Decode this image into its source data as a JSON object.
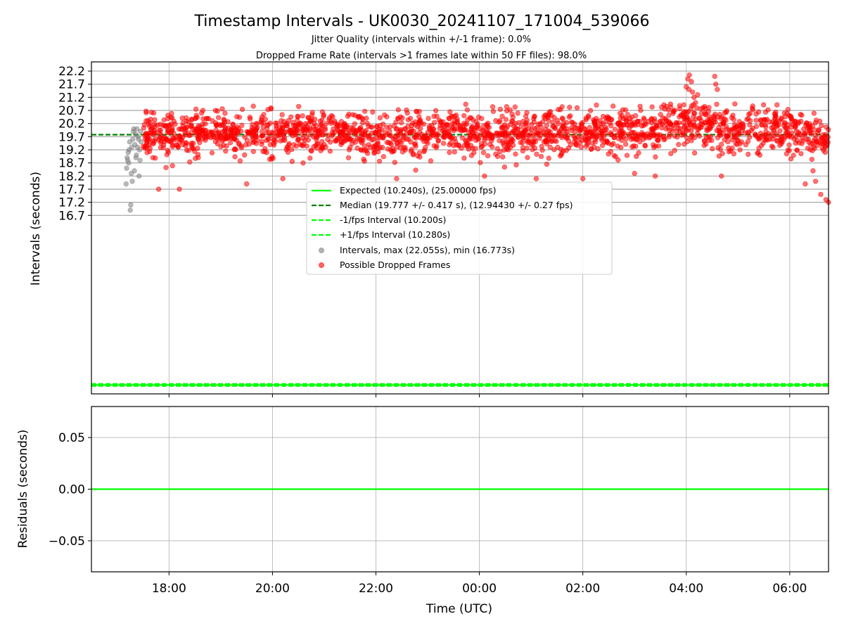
{
  "chart_data": [
    {
      "type": "scatter",
      "title": "Timestamp Intervals - UK0030_20241107_171004_539066",
      "subtitle_lines": [
        "Jitter Quality (intervals within +/-1 frame): 0.0%",
        "Dropped Frame Rate (intervals >1 frames late within 50 FF files): 98.0%"
      ],
      "xlabel": "",
      "ylabel": "Intervals (seconds)",
      "x_range_hours": [
        16.5,
        30.75
      ],
      "ylim": [
        9.9,
        22.55
      ],
      "y_ticks": [
        16.7,
        17.2,
        17.7,
        18.2,
        18.7,
        19.2,
        19.7,
        20.2,
        20.7,
        21.2,
        21.7,
        22.2
      ],
      "y_tick_labels": [
        "16.7",
        "17.2",
        "17.7",
        "18.2",
        "18.7",
        "19.2",
        "19.7",
        "20.2",
        "20.7",
        "21.2",
        "21.7",
        "22.2"
      ],
      "grid": true,
      "legend_placement": "center",
      "legend": [
        {
          "label": "Expected (10.240s), (25.00000 fps)",
          "style": "solid-line",
          "color": "#00ff00"
        },
        {
          "label": "Median (19.777 +/- 0.417 s), (12.94430 +/- 0.27 fps)",
          "style": "dashed-line",
          "color": "#008000"
        },
        {
          "label": "-1/fps Interval (10.200s)",
          "style": "dashed-line",
          "color": "#00ff00"
        },
        {
          "label": "+1/fps Interval (10.280s)",
          "style": "dashed-line",
          "color": "#00ff00"
        },
        {
          "label": "Intervals, max (22.055s), min (16.773s)",
          "style": "marker",
          "color": "#808080"
        },
        {
          "label": "Possible Dropped Frames",
          "style": "marker",
          "color": "#ff0000"
        }
      ],
      "reference_lines": {
        "expected": 10.24,
        "median": 19.777,
        "minus_1fps": 10.2,
        "plus_1fps": 10.28
      },
      "series": [
        {
          "name": "Intervals, max (22.055s), min (16.773s)",
          "color": "#808080",
          "points": [
            [
              17.17,
              17.9
            ],
            [
              17.18,
              18.5
            ],
            [
              17.19,
              18.9
            ],
            [
              17.2,
              18.8
            ],
            [
              17.21,
              19.1
            ],
            [
              17.22,
              18.7
            ],
            [
              17.23,
              19.2
            ],
            [
              17.24,
              19.5
            ],
            [
              17.25,
              16.9
            ],
            [
              17.26,
              17.1
            ],
            [
              17.27,
              18.3
            ],
            [
              17.28,
              19.3
            ],
            [
              17.29,
              18.0
            ],
            [
              17.3,
              19.6
            ],
            [
              17.31,
              19.9
            ],
            [
              17.32,
              20.0
            ],
            [
              17.33,
              18.4
            ],
            [
              17.34,
              19.4
            ],
            [
              17.35,
              19.8
            ],
            [
              17.36,
              18.9
            ],
            [
              17.37,
              19.0
            ],
            [
              17.38,
              20.0
            ],
            [
              17.39,
              19.3
            ],
            [
              17.4,
              19.7
            ],
            [
              17.41,
              19.6
            ],
            [
              17.42,
              18.2
            ],
            [
              17.43,
              19.2
            ],
            [
              17.44,
              18.8
            ],
            [
              17.45,
              19.9
            ],
            [
              17.46,
              19.5
            ]
          ]
        },
        {
          "name": "Possible Dropped Frames",
          "color": "#ff0000",
          "generated": true,
          "x_range_hours": [
            17.5,
            30.75
          ],
          "count": 2000,
          "y_center": 19.78,
          "y_spread": 0.42,
          "outliers": [
            [
              17.8,
              17.7
            ],
            [
              18.2,
              17.7
            ],
            [
              19.5,
              17.9
            ],
            [
              20.2,
              18.1
            ],
            [
              22.4,
              18.1
            ],
            [
              24.1,
              18.2
            ],
            [
              25.1,
              18.1
            ],
            [
              26.0,
              18.1
            ],
            [
              27.0,
              18.3
            ],
            [
              27.4,
              18.2
            ],
            [
              28.0,
              21.6
            ],
            [
              28.03,
              21.9
            ],
            [
              28.06,
              22.05
            ],
            [
              28.1,
              21.8
            ],
            [
              28.12,
              21.4
            ],
            [
              28.15,
              21.2
            ],
            [
              28.18,
              21.0
            ],
            [
              28.2,
              20.8
            ],
            [
              28.22,
              21.3
            ],
            [
              28.05,
              21.5
            ],
            [
              28.55,
              22.0
            ],
            [
              28.57,
              21.7
            ],
            [
              28.6,
              21.5
            ],
            [
              28.68,
              18.2
            ],
            [
              30.3,
              17.9
            ],
            [
              30.5,
              18.0
            ],
            [
              30.6,
              17.5
            ],
            [
              30.7,
              17.3
            ],
            [
              30.75,
              17.2
            ],
            [
              30.45,
              18.4
            ]
          ]
        }
      ]
    },
    {
      "type": "line",
      "xlabel": "Time (UTC)",
      "ylabel": "Residuals (seconds)",
      "x_range_hours": [
        16.5,
        30.75
      ],
      "ylim": [
        -0.08,
        0.08
      ],
      "y_ticks": [
        -0.05,
        0.0,
        0.05
      ],
      "y_tick_labels": [
        "−0.05",
        "0.00",
        "0.05"
      ],
      "x_tick_values": [
        18,
        20,
        22,
        24,
        26,
        28,
        30
      ],
      "x_tick_labels": [
        "18:00",
        "20:00",
        "22:00",
        "00:00",
        "02:00",
        "04:00",
        "06:00"
      ],
      "grid": true,
      "series": [
        {
          "name": "Residuals",
          "color": "#00ff00",
          "values": [
            0.0,
            0.0
          ]
        }
      ]
    }
  ]
}
